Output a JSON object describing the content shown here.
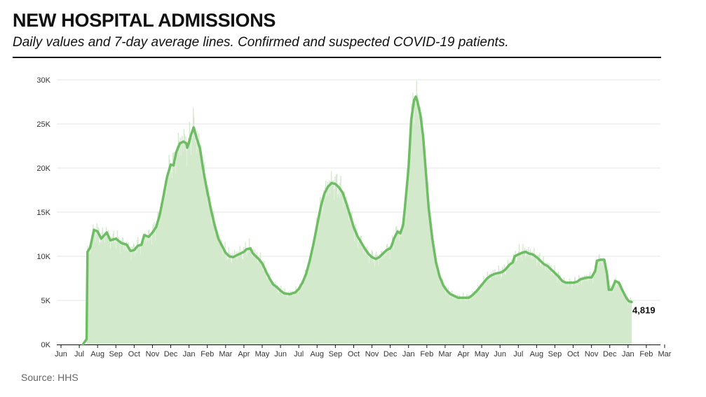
{
  "header": {
    "title": "NEW HOSPITAL ADMISSIONS",
    "subtitle": "Daily values and 7-day average lines. Confirmed and suspected COVID-19 patients."
  },
  "footer": {
    "source": "Source: HHS"
  },
  "colors": {
    "bar": "#d3e9cc",
    "line": "#6ebd64",
    "grid": "#e6e6e6",
    "axis": "#111111"
  },
  "chart_data": {
    "type": "line",
    "title": "NEW HOSPITAL ADMISSIONS",
    "subtitle": "Daily values and 7-day average lines. Confirmed and suspected COVID-19 patients.",
    "xlabel": "",
    "ylabel": "",
    "ylim": [
      0,
      30000
    ],
    "yticks": [
      {
        "value": 0,
        "label": "0K"
      },
      {
        "value": 5000,
        "label": "5K"
      },
      {
        "value": 10000,
        "label": "10K"
      },
      {
        "value": 15000,
        "label": "15K"
      },
      {
        "value": 20000,
        "label": "20K"
      },
      {
        "value": 25000,
        "label": "25K"
      },
      {
        "value": 30000,
        "label": "30K"
      }
    ],
    "xlim_months": [
      0,
      33
    ],
    "xticks": [
      {
        "m": 0,
        "label": "Jun"
      },
      {
        "m": 1,
        "label": "Jul"
      },
      {
        "m": 2,
        "label": "Aug"
      },
      {
        "m": 3,
        "label": "Sep"
      },
      {
        "m": 4,
        "label": "Oct"
      },
      {
        "m": 5,
        "label": "Nov"
      },
      {
        "m": 6,
        "label": "Dec"
      },
      {
        "m": 7,
        "label": "Jan"
      },
      {
        "m": 8,
        "label": "Feb"
      },
      {
        "m": 9,
        "label": "Mar"
      },
      {
        "m": 10,
        "label": "Apr"
      },
      {
        "m": 11,
        "label": "May"
      },
      {
        "m": 12,
        "label": "Jun"
      },
      {
        "m": 13,
        "label": "Jul"
      },
      {
        "m": 14,
        "label": "Aug"
      },
      {
        "m": 15,
        "label": "Sep"
      },
      {
        "m": 16,
        "label": "Oct"
      },
      {
        "m": 17,
        "label": "Nov"
      },
      {
        "m": 18,
        "label": "Dec"
      },
      {
        "m": 19,
        "label": "Jan"
      },
      {
        "m": 20,
        "label": "Feb"
      },
      {
        "m": 21,
        "label": "Mar"
      },
      {
        "m": 22,
        "label": "Apr"
      },
      {
        "m": 23,
        "label": "May"
      },
      {
        "m": 24,
        "label": "Jun"
      },
      {
        "m": 25,
        "label": "Jul"
      },
      {
        "m": 26,
        "label": "Aug"
      },
      {
        "m": 27,
        "label": "Sep"
      },
      {
        "m": 28,
        "label": "Oct"
      },
      {
        "m": 29,
        "label": "Nov"
      },
      {
        "m": 30,
        "label": "Dec"
      },
      {
        "m": 31,
        "label": "Jan"
      },
      {
        "m": 32,
        "label": "Feb"
      },
      {
        "m": 33,
        "label": "Mar"
      }
    ],
    "series": [
      {
        "name": "7-day average",
        "style": "line",
        "points": [
          [
            1.2,
            0
          ],
          [
            1.4,
            600
          ],
          [
            1.45,
            10500
          ],
          [
            1.6,
            11000
          ],
          [
            1.8,
            13000
          ],
          [
            2.0,
            12800
          ],
          [
            2.2,
            12000
          ],
          [
            2.5,
            12700
          ],
          [
            2.7,
            11800
          ],
          [
            3.0,
            12000
          ],
          [
            3.3,
            11500
          ],
          [
            3.6,
            11300
          ],
          [
            3.8,
            10600
          ],
          [
            4.0,
            10700
          ],
          [
            4.2,
            11200
          ],
          [
            4.4,
            11300
          ],
          [
            4.55,
            12400
          ],
          [
            4.8,
            12200
          ],
          [
            5.0,
            12700
          ],
          [
            5.2,
            13300
          ],
          [
            5.4,
            14700
          ],
          [
            5.6,
            16800
          ],
          [
            5.8,
            19000
          ],
          [
            6.0,
            20400
          ],
          [
            6.15,
            20300
          ],
          [
            6.3,
            21800
          ],
          [
            6.5,
            22800
          ],
          [
            6.7,
            23000
          ],
          [
            6.85,
            22800
          ],
          [
            6.9,
            22300
          ],
          [
            7.0,
            22900
          ],
          [
            7.1,
            23700
          ],
          [
            7.25,
            24600
          ],
          [
            7.4,
            23500
          ],
          [
            7.6,
            22200
          ],
          [
            7.8,
            19500
          ],
          [
            8.0,
            17300
          ],
          [
            8.2,
            15300
          ],
          [
            8.4,
            13500
          ],
          [
            8.6,
            12000
          ],
          [
            8.8,
            11200
          ],
          [
            9.0,
            10400
          ],
          [
            9.2,
            10000
          ],
          [
            9.4,
            9900
          ],
          [
            9.6,
            10100
          ],
          [
            9.8,
            10300
          ],
          [
            10.0,
            10500
          ],
          [
            10.15,
            10800
          ],
          [
            10.35,
            10900
          ],
          [
            10.5,
            10300
          ],
          [
            10.8,
            9700
          ],
          [
            11.0,
            9200
          ],
          [
            11.2,
            8300
          ],
          [
            11.4,
            7500
          ],
          [
            11.6,
            6800
          ],
          [
            11.8,
            6500
          ],
          [
            12.0,
            6100
          ],
          [
            12.2,
            5800
          ],
          [
            12.5,
            5700
          ],
          [
            12.8,
            5900
          ],
          [
            13.0,
            6300
          ],
          [
            13.2,
            7000
          ],
          [
            13.4,
            8000
          ],
          [
            13.6,
            9500
          ],
          [
            13.8,
            11400
          ],
          [
            14.0,
            13500
          ],
          [
            14.2,
            15600
          ],
          [
            14.4,
            17100
          ],
          [
            14.6,
            17900
          ],
          [
            14.8,
            18300
          ],
          [
            15.0,
            18200
          ],
          [
            15.2,
            17800
          ],
          [
            15.4,
            17200
          ],
          [
            15.6,
            16000
          ],
          [
            15.8,
            14700
          ],
          [
            16.0,
            13300
          ],
          [
            16.2,
            12300
          ],
          [
            16.4,
            11600
          ],
          [
            16.6,
            10900
          ],
          [
            16.8,
            10300
          ],
          [
            17.0,
            9900
          ],
          [
            17.2,
            9700
          ],
          [
            17.4,
            9900
          ],
          [
            17.6,
            10300
          ],
          [
            17.8,
            10700
          ],
          [
            18.0,
            10900
          ],
          [
            18.1,
            11300
          ],
          [
            18.2,
            12000
          ],
          [
            18.4,
            12800
          ],
          [
            18.55,
            12600
          ],
          [
            18.7,
            13500
          ],
          [
            18.8,
            15500
          ],
          [
            19.0,
            20000
          ],
          [
            19.15,
            25500
          ],
          [
            19.3,
            27700
          ],
          [
            19.4,
            28100
          ],
          [
            19.5,
            27400
          ],
          [
            19.65,
            26000
          ],
          [
            19.8,
            23500
          ],
          [
            19.95,
            19500
          ],
          [
            20.1,
            15500
          ],
          [
            20.3,
            12000
          ],
          [
            20.5,
            9300
          ],
          [
            20.7,
            7700
          ],
          [
            20.9,
            6700
          ],
          [
            21.1,
            6100
          ],
          [
            21.3,
            5700
          ],
          [
            21.5,
            5500
          ],
          [
            21.7,
            5300
          ],
          [
            21.9,
            5300
          ],
          [
            22.1,
            5300
          ],
          [
            22.3,
            5300
          ],
          [
            22.5,
            5600
          ],
          [
            22.7,
            6000
          ],
          [
            22.9,
            6500
          ],
          [
            23.1,
            7000
          ],
          [
            23.3,
            7500
          ],
          [
            23.5,
            7800
          ],
          [
            23.7,
            8000
          ],
          [
            23.9,
            8100
          ],
          [
            24.1,
            8200
          ],
          [
            24.3,
            8500
          ],
          [
            24.5,
            9000
          ],
          [
            24.7,
            9300
          ],
          [
            24.8,
            10000
          ],
          [
            25.0,
            10200
          ],
          [
            25.2,
            10400
          ],
          [
            25.4,
            10500
          ],
          [
            25.6,
            10300
          ],
          [
            25.8,
            10200
          ],
          [
            26.0,
            9900
          ],
          [
            26.2,
            9500
          ],
          [
            26.4,
            9100
          ],
          [
            26.6,
            8900
          ],
          [
            26.8,
            8500
          ],
          [
            27.0,
            8100
          ],
          [
            27.2,
            7700
          ],
          [
            27.4,
            7200
          ],
          [
            27.6,
            7000
          ],
          [
            27.8,
            7000
          ],
          [
            28.0,
            7000
          ],
          [
            28.2,
            7100
          ],
          [
            28.4,
            7400
          ],
          [
            28.6,
            7500
          ],
          [
            28.8,
            7600
          ],
          [
            29.0,
            7600
          ],
          [
            29.2,
            8300
          ],
          [
            29.3,
            9500
          ],
          [
            29.5,
            9600
          ],
          [
            29.7,
            9600
          ],
          [
            29.85,
            8000
          ],
          [
            29.95,
            6200
          ],
          [
            30.1,
            6200
          ],
          [
            30.3,
            7200
          ],
          [
            30.5,
            7000
          ],
          [
            30.7,
            6100
          ],
          [
            30.9,
            5300
          ],
          [
            31.05,
            4900
          ],
          [
            31.2,
            4819
          ]
        ]
      }
    ],
    "annotations": [
      {
        "label": "4,819",
        "m": 31.2,
        "value": 4819
      }
    ]
  }
}
